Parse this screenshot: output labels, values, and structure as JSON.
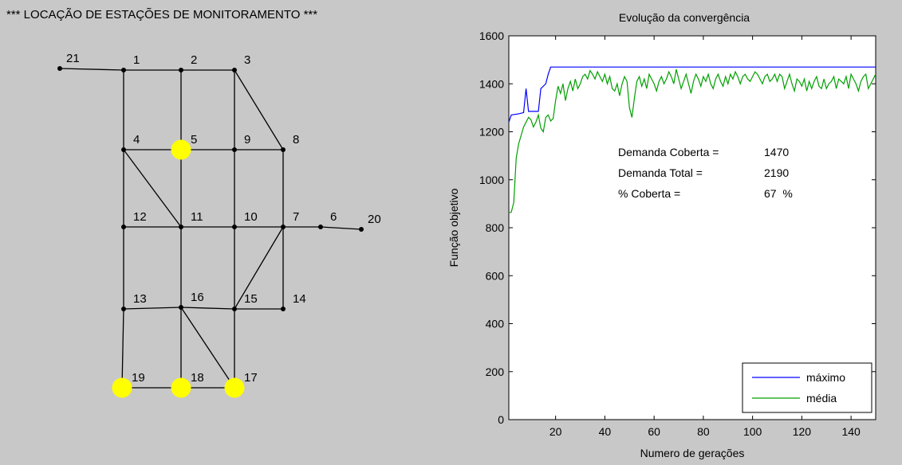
{
  "left_panel": {
    "title": "*** LOCAÇÃO DE ESTAÇÕES DE MONITORAMENTO ***",
    "nodes": [
      {
        "id": "21",
        "monitored": false
      },
      {
        "id": "1",
        "monitored": false
      },
      {
        "id": "2",
        "monitored": false
      },
      {
        "id": "3",
        "monitored": false
      },
      {
        "id": "4",
        "monitored": false
      },
      {
        "id": "5",
        "monitored": true
      },
      {
        "id": "9",
        "monitored": false
      },
      {
        "id": "8",
        "monitored": false
      },
      {
        "id": "12",
        "monitored": false
      },
      {
        "id": "11",
        "monitored": false
      },
      {
        "id": "10",
        "monitored": false
      },
      {
        "id": "7",
        "monitored": false
      },
      {
        "id": "6",
        "monitored": false
      },
      {
        "id": "20",
        "monitored": false
      },
      {
        "id": "13",
        "monitored": false
      },
      {
        "id": "16",
        "monitored": false
      },
      {
        "id": "15",
        "monitored": false
      },
      {
        "id": "14",
        "monitored": false
      },
      {
        "id": "19",
        "monitored": true
      },
      {
        "id": "18",
        "monitored": true
      },
      {
        "id": "17",
        "monitored": true
      }
    ],
    "edges": [
      [
        "21",
        "1"
      ],
      [
        "1",
        "2"
      ],
      [
        "2",
        "3"
      ],
      [
        "3",
        "8"
      ],
      [
        "1",
        "4"
      ],
      [
        "2",
        "5"
      ],
      [
        "3",
        "9"
      ],
      [
        "4",
        "5"
      ],
      [
        "5",
        "9"
      ],
      [
        "9",
        "8"
      ],
      [
        "4",
        "11"
      ],
      [
        "4",
        "12"
      ],
      [
        "5",
        "11"
      ],
      [
        "9",
        "10"
      ],
      [
        "8",
        "7"
      ],
      [
        "12",
        "11"
      ],
      [
        "11",
        "10"
      ],
      [
        "10",
        "7"
      ],
      [
        "7",
        "6"
      ],
      [
        "6",
        "20"
      ],
      [
        "12",
        "13"
      ],
      [
        "11",
        "16"
      ],
      [
        "10",
        "15"
      ],
      [
        "7",
        "14"
      ],
      [
        "7",
        "15"
      ],
      [
        "13",
        "16"
      ],
      [
        "16",
        "15"
      ],
      [
        "15",
        "14"
      ],
      [
        "16",
        "17"
      ],
      [
        "13",
        "19"
      ],
      [
        "16",
        "18"
      ],
      [
        "15",
        "17"
      ],
      [
        "19",
        "18"
      ],
      [
        "18",
        "17"
      ]
    ],
    "colors": {
      "monitored": "#ffff00",
      "node": "#000000",
      "edge": "#000000"
    }
  },
  "chart_data": {
    "type": "line",
    "title": "Evolução da convergência",
    "xlabel": "Numero de gerações",
    "ylabel": "Função objetivo",
    "xlim": [
      1,
      150
    ],
    "ylim": [
      0,
      1600
    ],
    "xticks": [
      20,
      40,
      60,
      80,
      100,
      120,
      140
    ],
    "yticks": [
      0,
      200,
      400,
      600,
      800,
      1000,
      1200,
      1400,
      1600
    ],
    "grid": false,
    "legend_position": "bottom-right",
    "series": [
      {
        "name": "máximo",
        "color": "#0000ff",
        "points": [
          [
            1,
            1240
          ],
          [
            2,
            1270
          ],
          [
            5,
            1275
          ],
          [
            7,
            1280
          ],
          [
            8,
            1380
          ],
          [
            9,
            1285
          ],
          [
            13,
            1285
          ],
          [
            14,
            1380
          ],
          [
            16,
            1400
          ],
          [
            17,
            1440
          ],
          [
            18,
            1470
          ],
          [
            150,
            1470
          ]
        ]
      },
      {
        "name": "média",
        "color": "#00a000",
        "values": [
          862,
          865,
          905,
          1090,
          1150,
          1185,
          1220,
          1240,
          1260,
          1250,
          1220,
          1240,
          1270,
          1215,
          1200,
          1260,
          1270,
          1245,
          1255,
          1330,
          1390,
          1360,
          1400,
          1330,
          1380,
          1410,
          1370,
          1420,
          1380,
          1400,
          1430,
          1440,
          1420,
          1455,
          1440,
          1420,
          1450,
          1430,
          1410,
          1440,
          1400,
          1430,
          1380,
          1370,
          1400,
          1350,
          1400,
          1430,
          1410,
          1300,
          1260,
          1340,
          1410,
          1430,
          1390,
          1420,
          1380,
          1440,
          1420,
          1400,
          1370,
          1410,
          1430,
          1400,
          1420,
          1450,
          1430,
          1400,
          1460,
          1420,
          1380,
          1410,
          1440,
          1400,
          1360,
          1410,
          1440,
          1420,
          1390,
          1430,
          1410,
          1440,
          1400,
          1380,
          1420,
          1440,
          1410,
          1390,
          1430,
          1400,
          1440,
          1420,
          1450,
          1430,
          1400,
          1430,
          1440,
          1420,
          1410,
          1430,
          1450,
          1440,
          1420,
          1400,
          1430,
          1440,
          1410,
          1420,
          1440,
          1410,
          1440,
          1430,
          1380,
          1410,
          1440,
          1400,
          1370,
          1420,
          1410,
          1390,
          1420,
          1370,
          1410,
          1380,
          1410,
          1430,
          1390,
          1380,
          1420,
          1380,
          1400,
          1410,
          1430,
          1380,
          1420,
          1410,
          1400,
          1430,
          1380,
          1440,
          1420,
          1400,
          1370,
          1410,
          1430,
          1440,
          1380,
          1400,
          1420,
          1440
        ]
      }
    ],
    "annotations": [
      {
        "label": "Demanda Coberta =",
        "value": "1470"
      },
      {
        "label": "Demanda Total =",
        "value": "2190"
      },
      {
        "label": "% Coberta =",
        "value": "67  %"
      }
    ]
  }
}
